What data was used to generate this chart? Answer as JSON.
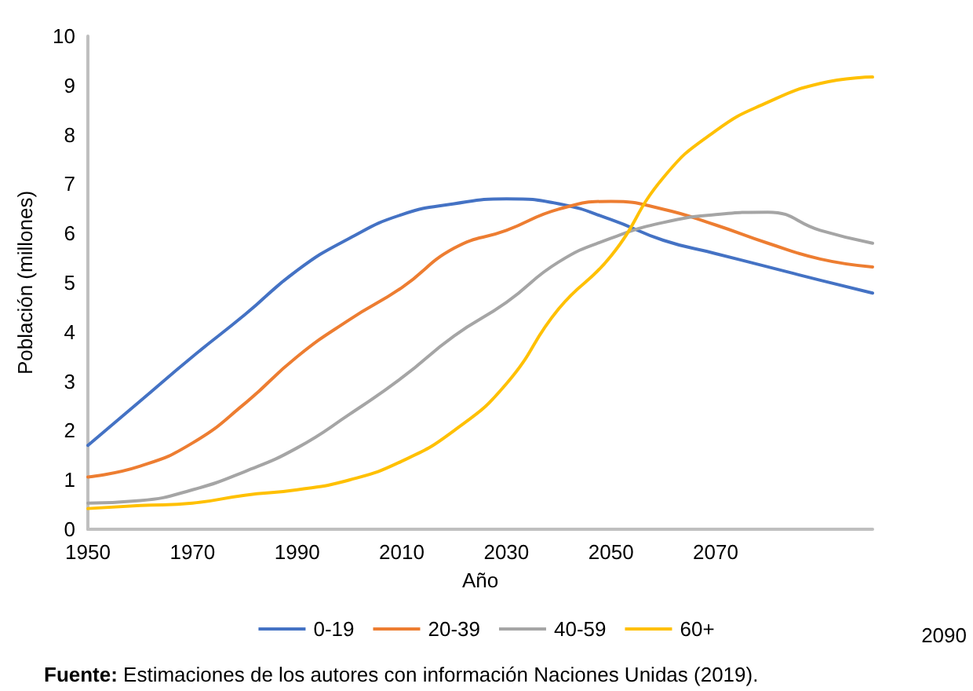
{
  "chart_data": {
    "type": "line",
    "xlabel": "Año",
    "ylabel": "Población (millones)",
    "x": [
      1950,
      1960,
      1970,
      1980,
      1990,
      2000,
      2010,
      2020,
      2030,
      2040,
      2050,
      2060,
      2070,
      2080,
      2090,
      2100
    ],
    "series": [
      {
        "name": "0-19",
        "color": "#4472c4",
        "values": [
          1.7,
          2.6,
          3.5,
          4.35,
          5.25,
          5.9,
          6.38,
          6.6,
          6.7,
          6.6,
          6.28,
          5.86,
          5.59,
          5.32,
          5.05,
          4.79
        ]
      },
      {
        "name": "20-39",
        "color": "#ed7d31",
        "values": [
          1.06,
          1.28,
          1.75,
          2.55,
          3.5,
          4.25,
          4.9,
          5.7,
          6.06,
          6.49,
          6.65,
          6.49,
          6.17,
          5.8,
          5.48,
          5.32
        ]
      },
      {
        "name": "40-59",
        "color": "#a5a5a5",
        "values": [
          0.53,
          0.58,
          0.8,
          1.17,
          1.65,
          2.33,
          3.07,
          3.92,
          4.6,
          5.42,
          5.9,
          6.22,
          6.38,
          6.43,
          6.06,
          5.8
        ]
      },
      {
        "name": "60+",
        "color": "#ffc000",
        "values": [
          0.42,
          0.48,
          0.53,
          0.69,
          0.8,
          1.0,
          1.38,
          2.0,
          2.95,
          4.47,
          5.54,
          7.13,
          8.08,
          8.66,
          9.04,
          9.17
        ]
      }
    ],
    "xlim": [
      1950,
      2100
    ],
    "xticks": [
      1950,
      1970,
      1990,
      2010,
      2030,
      2050,
      2070
    ],
    "ylim": [
      0,
      10
    ],
    "yticks": [
      0,
      1,
      2,
      3,
      4,
      5,
      6,
      7,
      8,
      9,
      10
    ],
    "grid": false,
    "legend": "bottom",
    "marker": "none",
    "line_style": "solid",
    "annotations": [
      "2090",
      "Fuente: Estimaciones de los autores con información Naciones Unidas (2019)."
    ]
  }
}
